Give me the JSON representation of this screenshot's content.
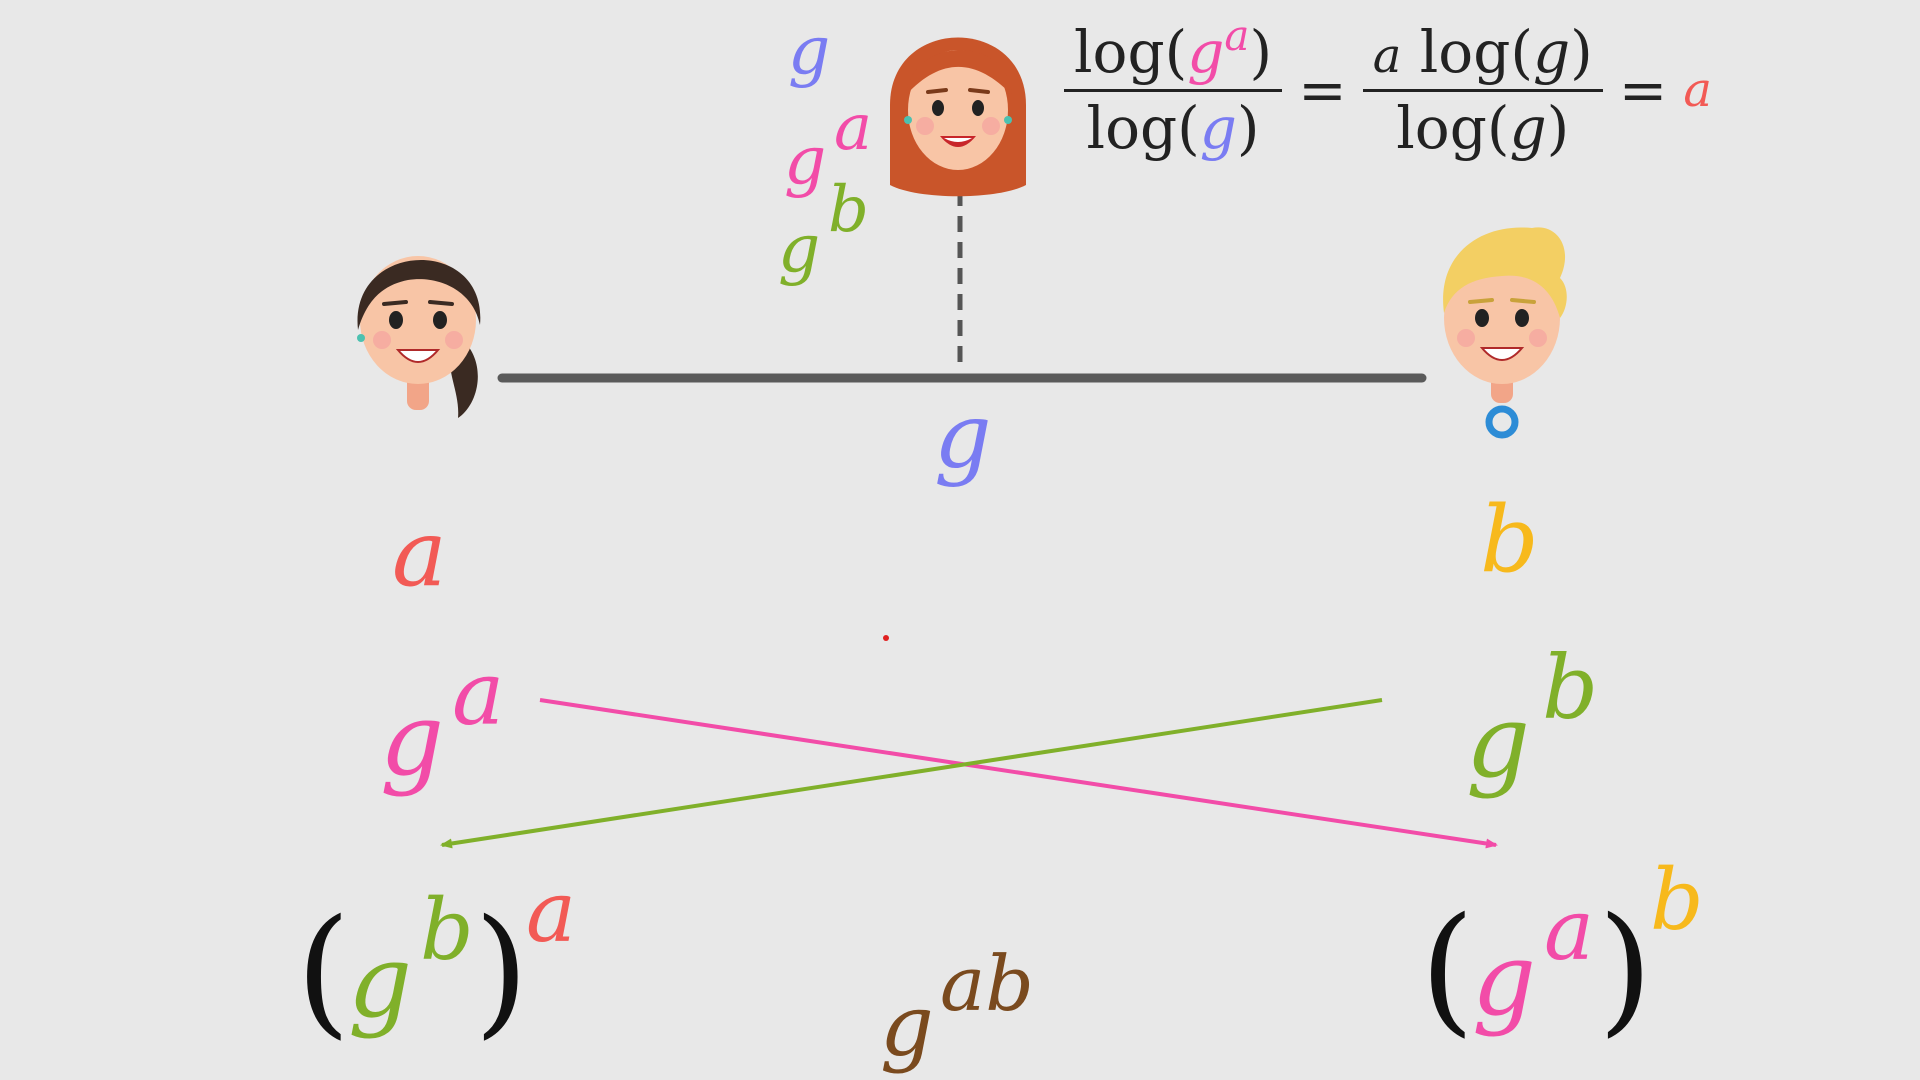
{
  "colors": {
    "background": "#e8e8e8",
    "g": "#7a7cf2",
    "a": "#f25a55",
    "b": "#f7b91c",
    "g_a": "#f24ca8",
    "g_b": "#80b02a",
    "g_ab": "#7a4a1e",
    "channel": "#5a5a5a",
    "eve_tap": "#555555",
    "ink": "#222222"
  },
  "icons": {
    "alice": "woman-dark-hair-avatar",
    "bob": "man-blonde-hair-avatar",
    "eve": "woman-red-hair-avatar"
  },
  "eavesdropper": {
    "known": [
      {
        "base": "g",
        "exp": ""
      },
      {
        "base": "g",
        "exp": "a"
      },
      {
        "base": "g",
        "exp": "b"
      }
    ],
    "formula": {
      "num1": {
        "fn": "log",
        "base": "g",
        "exp": "a"
      },
      "den1": {
        "fn": "log",
        "arg": "g"
      },
      "eq": "=",
      "num2": {
        "coef": "a",
        "fn": "log",
        "arg": "g"
      },
      "den2": {
        "fn": "log",
        "arg": "g"
      },
      "result": "a"
    }
  },
  "public_channel": {
    "label": "g"
  },
  "alice": {
    "secret": "a",
    "sends": {
      "base": "g",
      "exp": "a"
    },
    "computes": {
      "base": "g",
      "inner_exp": "b",
      "outer_exp": "a"
    }
  },
  "bob": {
    "secret": "b",
    "sends": {
      "base": "g",
      "exp": "b"
    },
    "computes": {
      "base": "g",
      "inner_exp": "a",
      "outer_exp": "b"
    }
  },
  "shared_key": {
    "base": "g",
    "exp": "ab"
  }
}
